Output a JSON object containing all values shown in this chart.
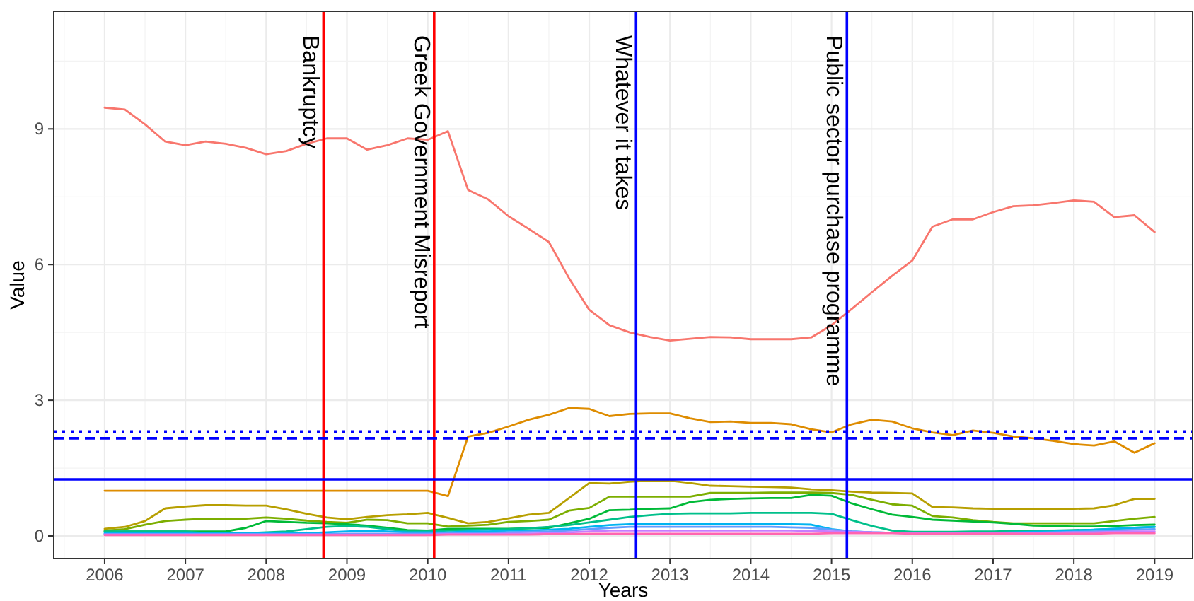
{
  "chart_data": {
    "type": "line",
    "xlabel": "Years",
    "ylabel": "Value",
    "x": [
      2006,
      2006.25,
      2006.5,
      2006.75,
      2007,
      2007.25,
      2007.5,
      2007.75,
      2008,
      2008.25,
      2008.5,
      2008.75,
      2009,
      2009.25,
      2009.5,
      2009.75,
      2010,
      2010.25,
      2010.5,
      2010.75,
      2011,
      2011.25,
      2011.5,
      2011.75,
      2012,
      2012.25,
      2012.5,
      2012.75,
      2013,
      2013.25,
      2013.5,
      2013.75,
      2014,
      2014.25,
      2014.5,
      2014.75,
      2015,
      2015.25,
      2015.5,
      2015.75,
      2016,
      2016.25,
      2016.5,
      2016.75,
      2017,
      2017.25,
      2017.5,
      2017.75,
      2018,
      2018.25,
      2018.5,
      2018.75,
      2019
    ],
    "series": [
      {
        "color": "#f8766d",
        "values": [
          9.47,
          9.43,
          9.1,
          8.72,
          8.64,
          8.72,
          8.67,
          8.58,
          8.44,
          8.51,
          8.67,
          8.79,
          8.79,
          8.54,
          8.64,
          8.79,
          8.76,
          8.95,
          7.65,
          7.44,
          7.07,
          6.79,
          6.5,
          5.7,
          5.0,
          4.66,
          4.5,
          4.4,
          4.32,
          4.36,
          4.4,
          4.39,
          4.35,
          4.35,
          4.35,
          4.39,
          4.66,
          5.02,
          5.39,
          5.75,
          6.09,
          6.84,
          7.0,
          7.0,
          7.16,
          7.29,
          7.31,
          7.36,
          7.42,
          7.39,
          7.05,
          7.09,
          6.72
        ]
      },
      {
        "color": "#de8c00",
        "values": [
          1,
          1,
          1,
          1,
          1,
          1,
          1,
          1,
          1,
          1,
          1,
          1,
          1,
          1,
          1,
          1,
          1,
          0.88,
          2.2,
          2.28,
          2.42,
          2.57,
          2.68,
          2.83,
          2.81,
          2.65,
          2.7,
          2.71,
          2.71,
          2.6,
          2.52,
          2.53,
          2.5,
          2.5,
          2.47,
          2.36,
          2.29,
          2.47,
          2.57,
          2.53,
          2.38,
          2.29,
          2.23,
          2.33,
          2.28,
          2.2,
          2.16,
          2.1,
          2.03,
          2.0,
          2.09,
          1.84,
          2.05
        ]
      },
      {
        "color": "#b79f00",
        "values": [
          0.16,
          0.2,
          0.33,
          0.61,
          0.65,
          0.68,
          0.68,
          0.67,
          0.67,
          0.59,
          0.49,
          0.41,
          0.37,
          0.42,
          0.46,
          0.48,
          0.51,
          0.4,
          0.28,
          0.31,
          0.39,
          0.47,
          0.51,
          0.84,
          1.17,
          1.16,
          1.2,
          1.22,
          1.22,
          1.17,
          1.11,
          1.1,
          1.09,
          1.08,
          1.07,
          1.03,
          1.01,
          0.98,
          0.96,
          0.95,
          0.94,
          0.64,
          0.63,
          0.61,
          0.6,
          0.6,
          0.59,
          0.59,
          0.6,
          0.61,
          0.68,
          0.82,
          0.82
        ]
      },
      {
        "color": "#7cae00",
        "values": [
          0.12,
          0.15,
          0.25,
          0.33,
          0.36,
          0.38,
          0.38,
          0.38,
          0.41,
          0.38,
          0.34,
          0.31,
          0.29,
          0.36,
          0.35,
          0.28,
          0.28,
          0.21,
          0.23,
          0.25,
          0.31,
          0.33,
          0.36,
          0.56,
          0.62,
          0.87,
          0.87,
          0.87,
          0.87,
          0.87,
          0.95,
          0.95,
          0.95,
          0.96,
          0.96,
          0.96,
          0.95,
          0.91,
          0.8,
          0.7,
          0.67,
          0.44,
          0.41,
          0.35,
          0.31,
          0.28,
          0.28,
          0.28,
          0.28,
          0.28,
          0.33,
          0.38,
          0.42
        ]
      },
      {
        "color": "#00ba38",
        "values": [
          0.09,
          0.1,
          0.1,
          0.1,
          0.1,
          0.1,
          0.1,
          0.18,
          0.33,
          0.31,
          0.29,
          0.28,
          0.26,
          0.23,
          0.18,
          0.13,
          0.12,
          0.16,
          0.16,
          0.16,
          0.16,
          0.17,
          0.18,
          0.28,
          0.38,
          0.57,
          0.58,
          0.6,
          0.61,
          0.75,
          0.8,
          0.82,
          0.83,
          0.84,
          0.84,
          0.91,
          0.89,
          0.72,
          0.59,
          0.47,
          0.42,
          0.36,
          0.34,
          0.32,
          0.3,
          0.27,
          0.23,
          0.22,
          0.21,
          0.21,
          0.22,
          0.24,
          0.25
        ]
      },
      {
        "color": "#00c08b",
        "values": [
          0.1,
          0.1,
          0.1,
          0.1,
          0.1,
          0.06,
          0.06,
          0.06,
          0.08,
          0.1,
          0.15,
          0.2,
          0.22,
          0.2,
          0.15,
          0.1,
          0.1,
          0.12,
          0.13,
          0.14,
          0.15,
          0.17,
          0.2,
          0.24,
          0.3,
          0.36,
          0.42,
          0.46,
          0.49,
          0.5,
          0.5,
          0.5,
          0.51,
          0.51,
          0.51,
          0.51,
          0.49,
          0.35,
          0.22,
          0.12,
          0.09,
          0.09,
          0.09,
          0.1,
          0.1,
          0.11,
          0.11,
          0.12,
          0.13,
          0.14,
          0.16,
          0.18,
          0.2
        ]
      },
      {
        "color": "#00b4f0",
        "values": [
          0.06,
          0.06,
          0.06,
          0.06,
          0.06,
          0.06,
          0.06,
          0.06,
          0.06,
          0.06,
          0.06,
          0.08,
          0.1,
          0.12,
          0.1,
          0.08,
          0.08,
          0.08,
          0.1,
          0.1,
          0.12,
          0.12,
          0.14,
          0.16,
          0.2,
          0.24,
          0.26,
          0.26,
          0.26,
          0.26,
          0.26,
          0.26,
          0.26,
          0.26,
          0.26,
          0.25,
          0.15,
          0.1,
          0.08,
          0.07,
          0.07,
          0.07,
          0.07,
          0.07,
          0.07,
          0.08,
          0.09,
          0.1,
          0.12,
          0.14,
          0.16,
          0.18,
          0.2
        ]
      },
      {
        "color": "#619cff",
        "values": [
          0.04,
          0.04,
          0.04,
          0.04,
          0.04,
          0.04,
          0.04,
          0.04,
          0.04,
          0.04,
          0.04,
          0.04,
          0.05,
          0.05,
          0.05,
          0.05,
          0.05,
          0.06,
          0.06,
          0.07,
          0.08,
          0.09,
          0.1,
          0.12,
          0.15,
          0.18,
          0.2,
          0.2,
          0.2,
          0.2,
          0.2,
          0.2,
          0.2,
          0.2,
          0.19,
          0.18,
          0.14,
          0.1,
          0.08,
          0.07,
          0.06,
          0.06,
          0.06,
          0.06,
          0.06,
          0.07,
          0.07,
          0.08,
          0.09,
          0.1,
          0.12,
          0.14,
          0.15
        ]
      },
      {
        "color": "#c77cff",
        "values": [
          0.03,
          0.03,
          0.03,
          0.03,
          0.03,
          0.03,
          0.03,
          0.03,
          0.03,
          0.03,
          0.03,
          0.03,
          0.03,
          0.03,
          0.03,
          0.03,
          0.03,
          0.04,
          0.04,
          0.04,
          0.05,
          0.05,
          0.06,
          0.08,
          0.1,
          0.12,
          0.12,
          0.12,
          0.12,
          0.12,
          0.12,
          0.12,
          0.12,
          0.12,
          0.12,
          0.11,
          0.1,
          0.09,
          0.08,
          0.07,
          0.07,
          0.07,
          0.07,
          0.07,
          0.07,
          0.07,
          0.07,
          0.07,
          0.08,
          0.08,
          0.09,
          0.1,
          0.1
        ]
      },
      {
        "color": "#ff64b0",
        "values": [
          0.02,
          0.02,
          0.02,
          0.02,
          0.02,
          0.02,
          0.02,
          0.02,
          0.02,
          0.02,
          0.02,
          0.02,
          0.02,
          0.02,
          0.02,
          0.02,
          0.02,
          0.03,
          0.03,
          0.03,
          0.03,
          0.03,
          0.04,
          0.04,
          0.05,
          0.05,
          0.05,
          0.05,
          0.05,
          0.05,
          0.05,
          0.05,
          0.05,
          0.05,
          0.05,
          0.05,
          0.06,
          0.06,
          0.06,
          0.06,
          0.05,
          0.05,
          0.05,
          0.05,
          0.05,
          0.05,
          0.05,
          0.05,
          0.05,
          0.05,
          0.06,
          0.06,
          0.06
        ]
      }
    ],
    "xlim": [
      2005.37,
      2019.47
    ],
    "xticks": [
      2006,
      2007,
      2008,
      2009,
      2010,
      2011,
      2012,
      2013,
      2014,
      2015,
      2016,
      2017,
      2018,
      2019
    ],
    "ylim": [
      -0.5,
      11.6
    ],
    "yticks": [
      0,
      3,
      6,
      9
    ],
    "ref_lines": [
      {
        "axis": "x",
        "value": 2008.71,
        "label": "Bankruptcy",
        "color": "#ff0000"
      },
      {
        "axis": "x",
        "value": 2010.08,
        "label": "Greek Government Misreport",
        "color": "#ff0000"
      },
      {
        "axis": "x",
        "value": 2012.58,
        "label": "Whatever it takes",
        "color": "#0000ff"
      },
      {
        "axis": "x",
        "value": 2015.19,
        "label": "Public sector purchase programme",
        "color": "#0000ff"
      },
      {
        "axis": "y",
        "value": 1.25,
        "color": "#0000ff",
        "line_style": "solid"
      },
      {
        "axis": "y",
        "value": 2.16,
        "color": "#0000ff",
        "line_style": "dashed"
      },
      {
        "axis": "y",
        "value": 2.31,
        "color": "#0000ff",
        "line_style": "dotted"
      }
    ],
    "grid": true,
    "line_style": "solid",
    "marker": "none"
  }
}
